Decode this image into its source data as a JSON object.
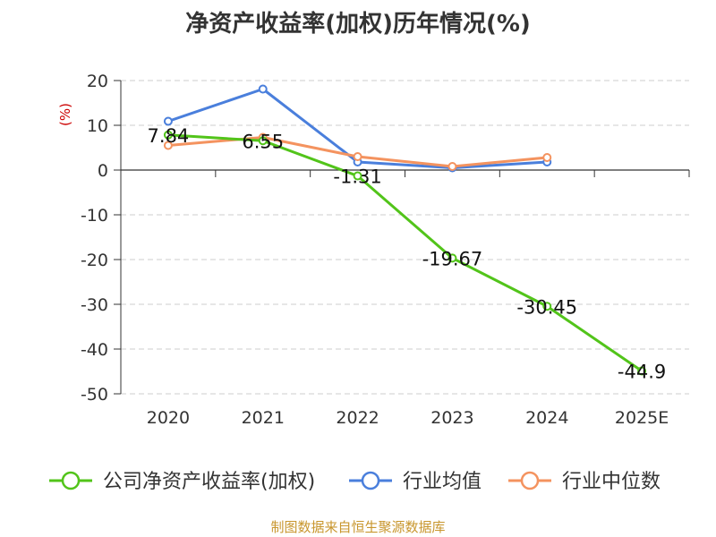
{
  "chart_data": {
    "type": "line",
    "title": "净资产收益率(加权)历年情况(%)",
    "ylabel": "(%)",
    "xlabel": "",
    "categories": [
      "2020",
      "2021",
      "2022",
      "2023",
      "2024",
      "2025E"
    ],
    "ylim": [
      -50,
      20
    ],
    "yticks": [
      20,
      10,
      0,
      -10,
      -20,
      -30,
      -40,
      -50
    ],
    "grid": true,
    "legend_position": "bottom",
    "series": [
      {
        "name": "公司净资产收益率(加权)",
        "color": "#52c41a",
        "values": [
          7.84,
          6.55,
          -1.31,
          -19.67,
          -30.45,
          -44.9
        ],
        "labels": [
          "7.84",
          "6.55",
          "-1.31",
          "-19.67",
          "-30.45",
          "-44.9"
        ]
      },
      {
        "name": "行业均值",
        "color": "#4a7fdc",
        "values": [
          10.9,
          18.1,
          1.8,
          0.5,
          1.8,
          null
        ]
      },
      {
        "name": "行业中位数",
        "color": "#f4935f",
        "values": [
          5.5,
          7.3,
          3.0,
          0.8,
          2.8,
          null
        ]
      }
    ]
  },
  "source": "制图数据来自恒生聚源数据库",
  "ylabel_color": "#cc0000"
}
